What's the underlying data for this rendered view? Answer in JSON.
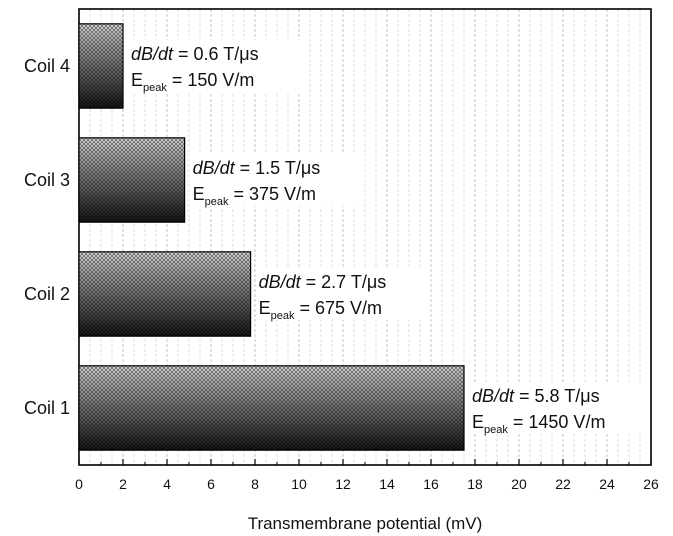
{
  "chart_data": {
    "type": "bar",
    "orientation": "horizontal",
    "categories": [
      "Coil 1",
      "Coil 2",
      "Coil 3",
      "Coil 4"
    ],
    "values": [
      17.5,
      7.8,
      4.8,
      2.0
    ],
    "xlabel": "Transmembrane potential (mV)",
    "ylabel": "",
    "xlim": [
      0,
      26
    ],
    "x_ticks": [
      "0",
      "2",
      "4",
      "6",
      "8",
      "10",
      "12",
      "14",
      "16",
      "18",
      "20",
      "22",
      "24",
      "26"
    ],
    "grid": "vertical dashed",
    "annotations": [
      {
        "dbdt_label": "dB/dt",
        "dbdt_value": " = 5.8 T/μs",
        "e_main": "E",
        "e_sub": "peak",
        "e_value": " = 1450 V/m"
      },
      {
        "dbdt_label": "dB/dt",
        "dbdt_value": " = 2.7 T/μs",
        "e_main": "E",
        "e_sub": "peak",
        "e_value": " = 675 V/m"
      },
      {
        "dbdt_label": "dB/dt",
        "dbdt_value": " = 1.5 T/μs",
        "e_main": "E",
        "e_sub": "peak",
        "e_value": " = 375 V/m"
      },
      {
        "dbdt_label": "dB/dt",
        "dbdt_value": " = 0.6 T/μs",
        "e_main": "E",
        "e_sub": "peak",
        "e_value": " = 150 V/m"
      }
    ],
    "bar_fill": "crosshatch gradient (light top, dark bottom)",
    "colors": {
      "bar_dark": "#1a1a1a",
      "bar_light": "#cfcfcf",
      "grid": "#cfcfcf",
      "axis": "#000000"
    }
  }
}
